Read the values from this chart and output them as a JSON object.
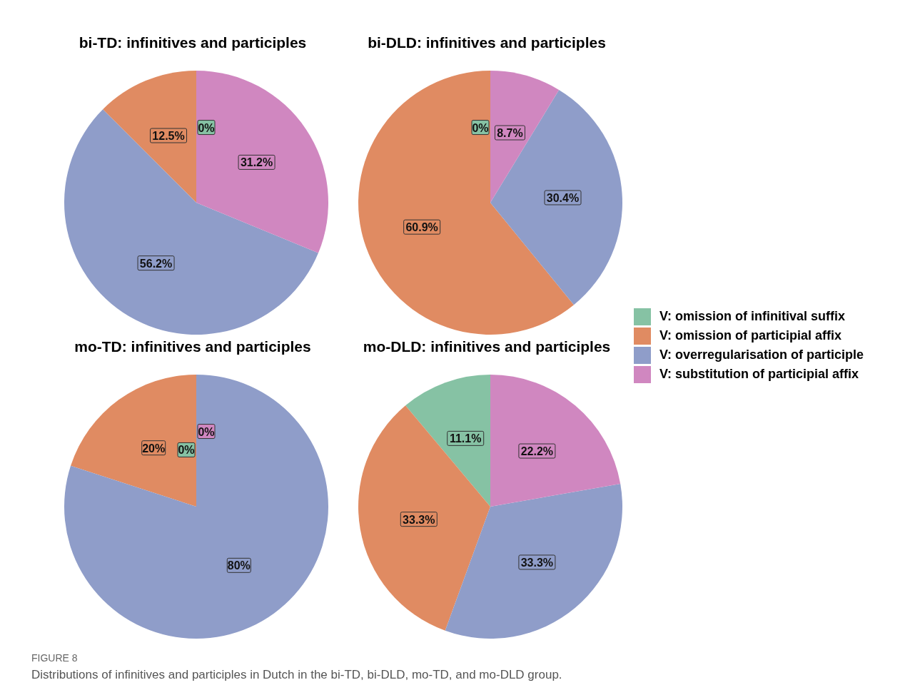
{
  "chart_data": [
    {
      "type": "pie",
      "title": "bi-TD: infinitives and participles",
      "categories": [
        "V: omission of infinitival suffix",
        "V: omission of participial affix",
        "V: overregularisation of participle",
        "V: substitution of participial affix"
      ],
      "values": [
        0,
        12.5,
        56.2,
        31.2
      ],
      "value_labels": [
        "0%",
        "12.5%",
        "56.2%",
        "31.2%"
      ],
      "colors": [
        "#86c2a4",
        "#e08b62",
        "#8f9dc9",
        "#d087c0"
      ],
      "legend": "right"
    },
    {
      "type": "pie",
      "title": "bi-DLD: infinitives and participles",
      "categories": [
        null,
        null,
        null,
        null
      ],
      "values": [
        0,
        60.9,
        30.4,
        8.7
      ],
      "value_labels": [
        "0%",
        "60.9%",
        "30.4%",
        "8.7%"
      ],
      "colors": [
        "#86c2a4",
        "#e08b62",
        "#8f9dc9",
        "#d087c0"
      ]
    },
    {
      "type": "pie",
      "title": "mo-TD: infinitives and participles",
      "categories": [
        null,
        null,
        null,
        null
      ],
      "values": [
        0,
        20,
        80,
        0
      ],
      "value_labels": [
        "0%",
        "20%",
        "80%",
        "0%"
      ],
      "colors": [
        "#86c2a4",
        "#e08b62",
        "#8f9dc9",
        "#d087c0"
      ]
    },
    {
      "type": "pie",
      "title": "mo-DLD: infinitives and participles",
      "categories": [
        null,
        null,
        null,
        null
      ],
      "values": [
        11.1,
        33.3,
        33.3,
        22.2
      ],
      "value_labels": [
        "11.1%",
        "33.3%",
        "33.3%",
        "22.2%"
      ],
      "colors": [
        "#86c2a4",
        "#e08b62",
        "#8f9dc9",
        "#d087c0"
      ],
      "annotations": [
        "FIGURE 8",
        "Distributions of infinitives and participles in Dutch in the bi-TD, bi-DLD, mo-TD, and mo-DLD group."
      ]
    }
  ]
}
